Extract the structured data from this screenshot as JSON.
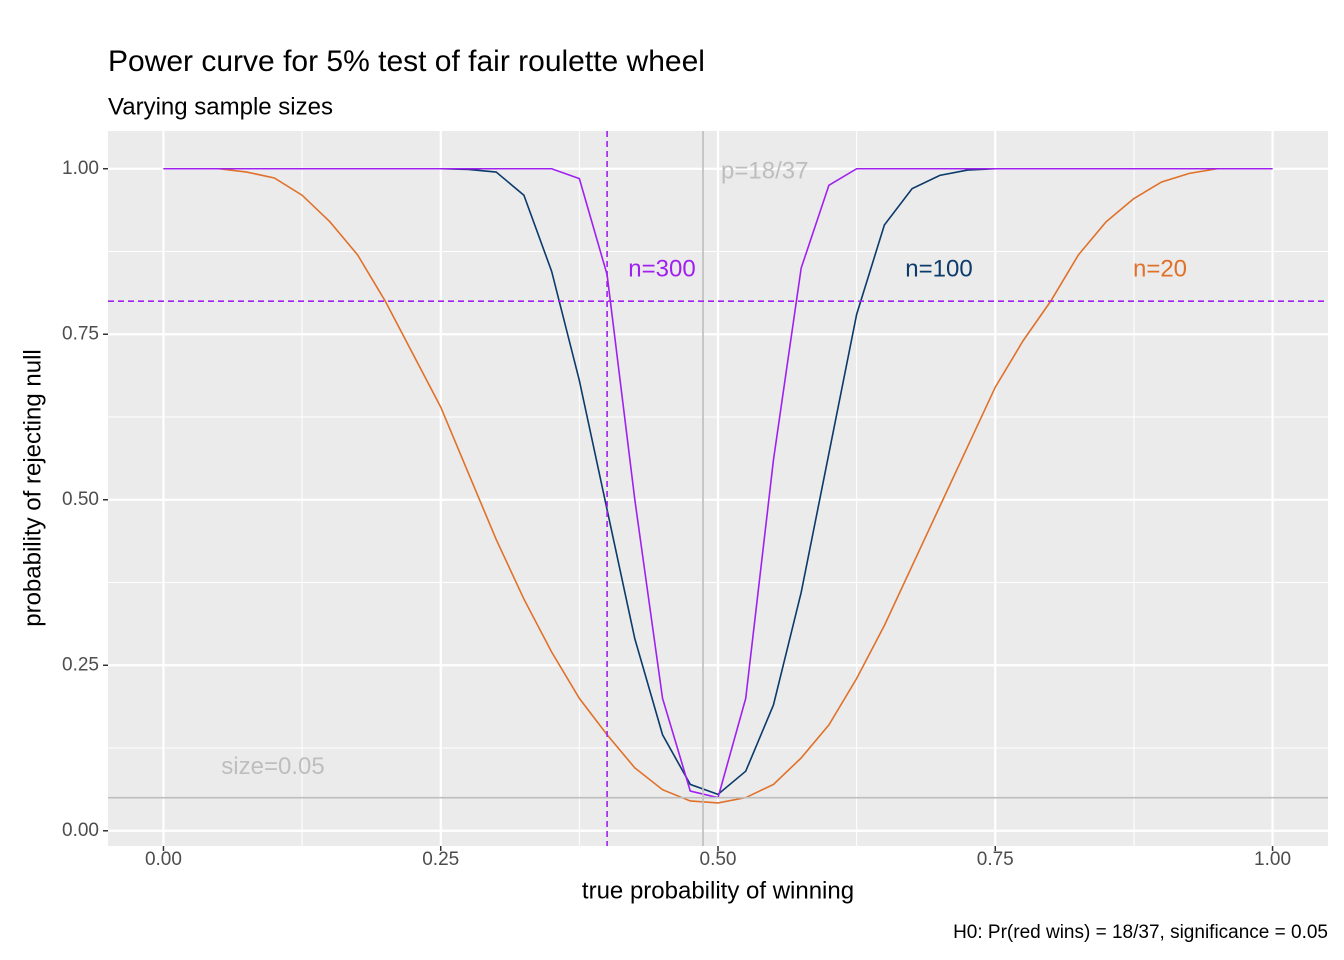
{
  "chart_data": {
    "type": "line",
    "title": "Power curve for 5% test of fair roulette wheel",
    "subtitle": "Varying sample sizes",
    "x_label": "true probability of winning",
    "y_label": "probability of rejecting null",
    "caption": "H0: Pr(red wins) = 18/37, significance = 0.05",
    "x": [
      0,
      0.025,
      0.05,
      0.075,
      0.1,
      0.125,
      0.15,
      0.175,
      0.2,
      0.225,
      0.25,
      0.275,
      0.3,
      0.325,
      0.35,
      0.375,
      0.4,
      0.425,
      0.45,
      0.475,
      0.5,
      0.525,
      0.55,
      0.575,
      0.6,
      0.625,
      0.65,
      0.675,
      0.7,
      0.725,
      0.75,
      0.775,
      0.8,
      0.825,
      0.85,
      0.875,
      0.9,
      0.925,
      0.95,
      0.975,
      1
    ],
    "series": [
      {
        "name": "n=20",
        "color": "#e0712a",
        "values": [
          1,
          1,
          1,
          0.995,
          0.986,
          0.96,
          0.92,
          0.87,
          0.8,
          0.72,
          0.64,
          0.54,
          0.44,
          0.35,
          0.27,
          0.2,
          0.145,
          0.095,
          0.062,
          0.045,
          0.042,
          0.05,
          0.07,
          0.11,
          0.16,
          0.23,
          0.31,
          0.4,
          0.49,
          0.58,
          0.67,
          0.74,
          0.8,
          0.87,
          0.92,
          0.955,
          0.98,
          0.993,
          1,
          1,
          1
        ]
      },
      {
        "name": "n=100",
        "color": "#0b3a6b",
        "values": [
          1,
          1,
          1,
          1,
          1,
          1,
          1,
          1,
          1,
          1,
          1,
          0.999,
          0.995,
          0.96,
          0.845,
          0.68,
          0.485,
          0.29,
          0.145,
          0.07,
          0.055,
          0.09,
          0.19,
          0.36,
          0.57,
          0.78,
          0.915,
          0.97,
          0.99,
          0.998,
          1,
          1,
          1,
          1,
          1,
          1,
          1,
          1,
          1,
          1,
          1
        ]
      },
      {
        "name": "n=300",
        "color": "#a020f0",
        "values": [
          1,
          1,
          1,
          1,
          1,
          1,
          1,
          1,
          1,
          1,
          1,
          1,
          1,
          1,
          1,
          0.985,
          0.84,
          0.5,
          0.2,
          0.06,
          0.05,
          0.2,
          0.56,
          0.85,
          0.975,
          1,
          1,
          1,
          1,
          1,
          1,
          1,
          1,
          1,
          1,
          1,
          1,
          1,
          1,
          1,
          1
        ]
      }
    ],
    "reference_lines": [
      {
        "axis": "x",
        "value": 0.4865,
        "label": "p=18/37",
        "color": "#bebebe",
        "dashed": false
      },
      {
        "axis": "y",
        "value": 0.05,
        "label": "size=0.05",
        "color": "#bebebe",
        "dashed": false
      },
      {
        "axis": "x",
        "value": 0.4,
        "color": "#a020f0",
        "dashed": true
      },
      {
        "axis": "y",
        "value": 0.8,
        "color": "#a020f0",
        "dashed": true
      }
    ],
    "xlim": [
      -0.05,
      1.05
    ],
    "ylim": [
      -0.023,
      1.057
    ],
    "xticks": [
      {
        "value": 0,
        "label": "0.00"
      },
      {
        "value": 0.25,
        "label": "0.25"
      },
      {
        "value": 0.5,
        "label": "0.50"
      },
      {
        "value": 0.75,
        "label": "0.75"
      },
      {
        "value": 1,
        "label": "1.00"
      }
    ],
    "yticks": [
      {
        "value": 0,
        "label": "0.00"
      },
      {
        "value": 0.25,
        "label": "0.25"
      },
      {
        "value": 0.5,
        "label": "0.50"
      },
      {
        "value": 0.75,
        "label": "0.75"
      },
      {
        "value": 1,
        "label": "1.00"
      }
    ],
    "grid": true
  }
}
